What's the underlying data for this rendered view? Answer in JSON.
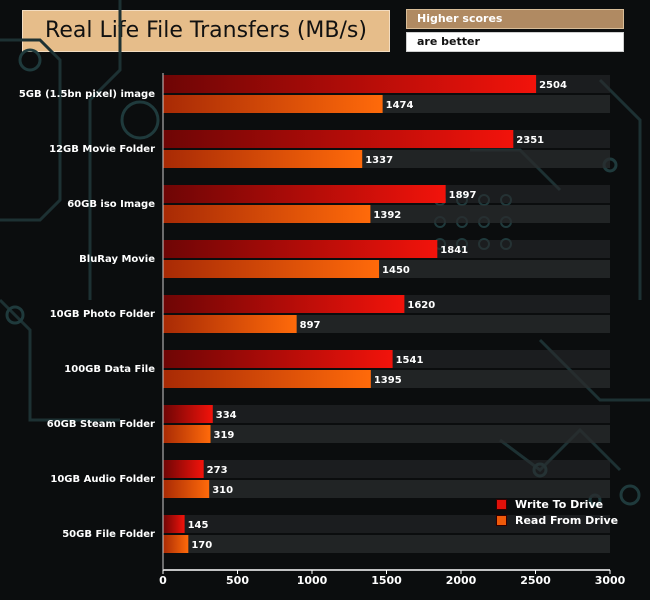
{
  "chart_data": {
    "type": "bar",
    "orientation": "horizontal",
    "title": "Real Life File Transfers (MB/s)",
    "note": [
      "Higher scores",
      "are better"
    ],
    "categories": [
      "5GB (1.5bn pixel) image",
      "12GB Movie Folder",
      "60GB iso Image",
      "BluRay Movie",
      "10GB Photo Folder",
      "100GB Data File",
      "60GB Steam Folder",
      "10GB Audio Folder",
      "50GB File Folder"
    ],
    "series": [
      {
        "name": "Write To  Drive",
        "values": [
          2504,
          2351,
          1897,
          1841,
          1620,
          1541,
          334,
          273,
          145
        ]
      },
      {
        "name": "Read From  Drive",
        "values": [
          1474,
          1337,
          1392,
          1450,
          897,
          1395,
          319,
          310,
          170
        ]
      }
    ],
    "xlim": [
      0,
      3000
    ],
    "xticks": [
      0,
      500,
      1000,
      1500,
      2000,
      2500,
      3000
    ],
    "legend_position": "bottom-right",
    "grid": false,
    "colors": {
      "write": "#e0110a",
      "read": "#f05a0a",
      "title_bg": "#e6bd8a"
    }
  }
}
